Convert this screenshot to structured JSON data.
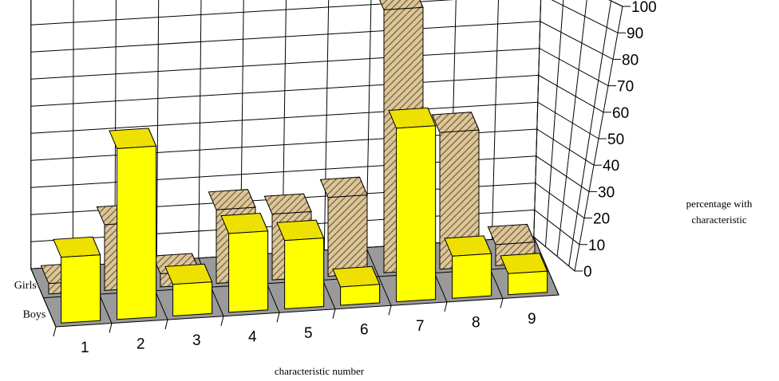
{
  "chart_data": {
    "type": "bar",
    "style": "3d-stacked-rows",
    "title": "",
    "xlabel": "characteristic number",
    "ylabel_line1": "percentage with",
    "ylabel_line2": "characteristic",
    "categories": [
      "1",
      "2",
      "3",
      "4",
      "5",
      "6",
      "7",
      "8",
      "9"
    ],
    "series": [
      {
        "name": "Boys",
        "values": [
          25,
          65,
          12,
          30,
          26,
          7,
          66,
          16,
          8
        ]
      },
      {
        "name": "Girls",
        "values": [
          4,
          25,
          5,
          28,
          25,
          30,
          100,
          52,
          8
        ]
      }
    ],
    "ylim": [
      0,
      100
    ],
    "yticks": [
      0,
      10,
      20,
      30,
      40,
      50,
      60,
      70,
      80,
      90,
      100
    ],
    "grid": true,
    "colors": {
      "boys_front": "#ffff00",
      "boys_side": "#c8b400",
      "boys_top": "#eee000",
      "girls_front": "#dcc79b",
      "girls_hatch": "#8a6f47",
      "girls_side": "#b89e74",
      "floor": "#9a9a9a"
    }
  }
}
